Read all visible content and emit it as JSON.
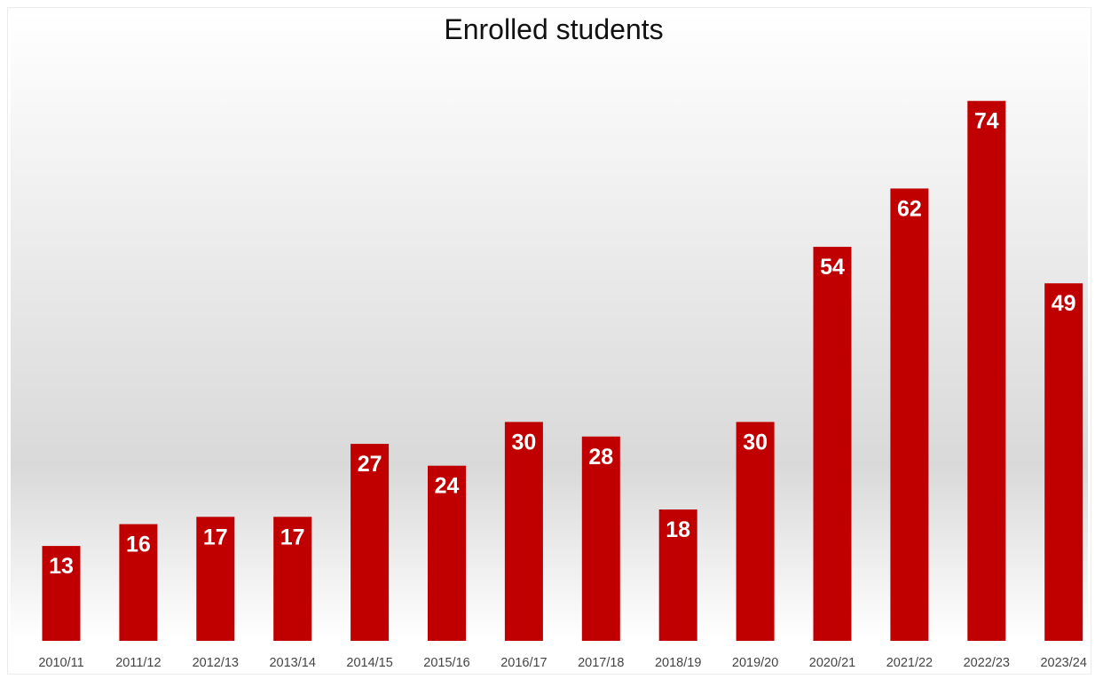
{
  "chart_data": {
    "type": "bar",
    "title": "Enrolled students",
    "categories": [
      "2010/11",
      "2011/12",
      "2012/13",
      "2013/14",
      "2014/15",
      "2015/16",
      "2016/17",
      "2017/18",
      "2018/19",
      "2019/20",
      "2020/21",
      "2021/22",
      "2022/23",
      "2023/24"
    ],
    "values": [
      13,
      16,
      17,
      17,
      27,
      24,
      30,
      28,
      18,
      30,
      54,
      62,
      74,
      49
    ],
    "ylim": [
      0,
      87
    ],
    "grid": false,
    "legend": "none",
    "bar_color": "#c00000",
    "label_color": "#ffffff"
  }
}
